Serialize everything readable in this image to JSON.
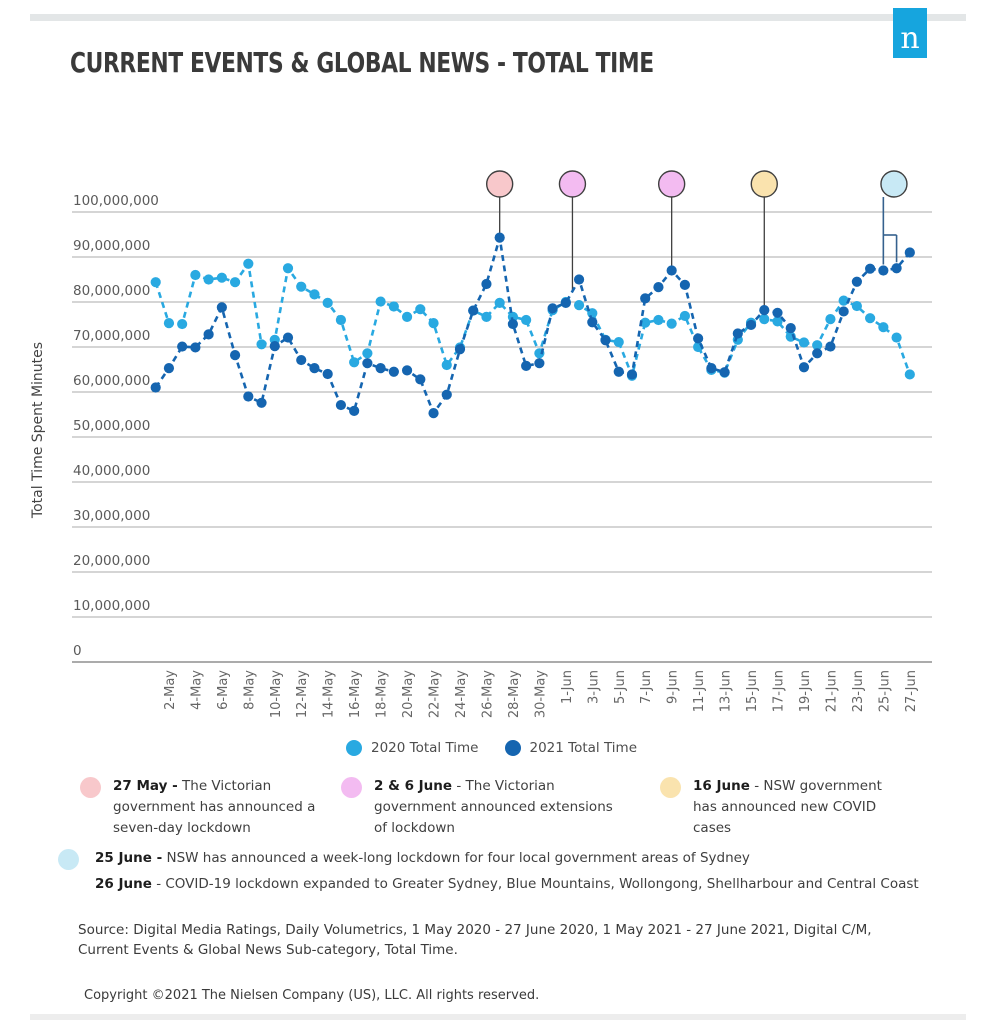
{
  "brand": {
    "logo_letter": "n",
    "logo_color": "#16a5de"
  },
  "header": {
    "title": "CURRENT EVENTS & GLOBAL NEWS -  TOTAL TIME"
  },
  "chart_data": {
    "type": "line",
    "title": "CURRENT EVENTS & GLOBAL NEWS - TOTAL TIME",
    "ylabel": "Total Time Spent Minutes",
    "ylim": [
      0,
      100000000
    ],
    "ytick_step": 10000000,
    "grid": "horizontal",
    "legend_position": "bottom-center",
    "x": [
      "1-May",
      "2-May",
      "3-May",
      "4-May",
      "5-May",
      "6-May",
      "7-May",
      "8-May",
      "9-May",
      "10-May",
      "11-May",
      "12-May",
      "13-May",
      "14-May",
      "15-May",
      "16-May",
      "17-May",
      "18-May",
      "19-May",
      "20-May",
      "21-May",
      "22-May",
      "23-May",
      "24-May",
      "25-May",
      "26-May",
      "27-May",
      "28-May",
      "29-May",
      "30-May",
      "31-May",
      "1-Jun",
      "2-Jun",
      "3-Jun",
      "4-Jun",
      "5-Jun",
      "6-Jun",
      "7-Jun",
      "8-Jun",
      "9-Jun",
      "10-Jun",
      "11-Jun",
      "12-Jun",
      "13-Jun",
      "14-Jun",
      "15-Jun",
      "16-Jun",
      "17-Jun",
      "18-Jun",
      "19-Jun",
      "20-Jun",
      "21-Jun",
      "22-Jun",
      "23-Jun",
      "24-Jun",
      "25-Jun",
      "26-Jun",
      "27-Jun"
    ],
    "x_ticks_shown": [
      "2-May",
      "4-May",
      "6-May",
      "8-May",
      "10-May",
      "12-May",
      "14-May",
      "16-May",
      "18-May",
      "20-May",
      "22-May",
      "24-May",
      "26-May",
      "28-May",
      "30-May",
      "1-Jun",
      "3-Jun",
      "5-Jun",
      "7-Jun",
      "9-Jun",
      "11-Jun",
      "13-Jun",
      "15-Jun",
      "17-Jun",
      "19-Jun",
      "21-Jun",
      "23-Jun",
      "25-Jun",
      "27-Jun"
    ],
    "series": [
      {
        "name": "2020 Total Time",
        "color": "#29a9e1",
        "values_millions": [
          84.4,
          75.3,
          75.1,
          86.0,
          85.0,
          85.4,
          84.4,
          88.5,
          70.6,
          71.6,
          87.5,
          83.4,
          81.7,
          79.8,
          76.0,
          66.6,
          68.6,
          80.1,
          79.0,
          76.7,
          78.4,
          75.3,
          66.0,
          69.9,
          78.1,
          76.7,
          79.8,
          76.7,
          76.0,
          68.6,
          78.2,
          80.0,
          79.3,
          77.5,
          71.6,
          71.1,
          63.6,
          75.4,
          76.0,
          75.2,
          76.9,
          70.0,
          64.9,
          64.3,
          71.6,
          75.4,
          76.2,
          75.7,
          72.3,
          71.0,
          70.4,
          76.2,
          80.3,
          79.1,
          76.4,
          74.4,
          72.1,
          63.9
        ]
      },
      {
        "name": "2021 Total Time",
        "color": "#1565b0",
        "values_millions": [
          61.0,
          65.3,
          70.1,
          69.9,
          72.8,
          78.8,
          68.2,
          59.0,
          57.6,
          70.2,
          72.1,
          67.1,
          65.3,
          64.0,
          57.1,
          55.8,
          66.4,
          65.3,
          64.5,
          64.8,
          62.8,
          55.3,
          59.4,
          69.5,
          78.1,
          84.0,
          94.3,
          75.1,
          65.8,
          66.4,
          78.6,
          79.8,
          85.0,
          75.5,
          71.5,
          64.5,
          63.9,
          80.8,
          83.3,
          87.0,
          83.8,
          71.9,
          65.3,
          64.4,
          73.0,
          74.9,
          78.2,
          77.6,
          74.2,
          65.5,
          68.6,
          70.1,
          77.9,
          84.5,
          87.4,
          87.0,
          87.5,
          91.0
        ]
      }
    ],
    "markers": [
      {
        "label": "27 May",
        "color": "#f8c8cb",
        "day": "27-May",
        "day_index": 26
      },
      {
        "label": "2 & 6 June",
        "color": "#f3bbf1",
        "day": "2-Jun",
        "day_index": 31.5
      },
      {
        "label": "2 & 6 June",
        "color": "#f3bbf1",
        "day": "9-Jun",
        "day_index": 39
      },
      {
        "label": "16 June",
        "color": "#fae3ae",
        "day": "16-Jun",
        "day_index": 46
      },
      {
        "label": "25 & 26 June",
        "color": "#c8e9f5",
        "day": "25-Jun",
        "day_index": 55.5,
        "bracket": [
          55,
          56
        ]
      }
    ]
  },
  "events": {
    "row1": [
      {
        "color": "#f8c8cb",
        "date": "27 May -",
        "text": "The Victorian government has announced a seven-day lockdown"
      },
      {
        "color": "#f3bbf1",
        "date": "2 & 6 June",
        "text": "- The Victorian government announced extensions  of lockdown"
      },
      {
        "color": "#fae3ae",
        "date": "16 June",
        "text": "- NSW government has announced new COVID cases"
      }
    ],
    "row2": {
      "color": "#c8e9f5",
      "lines": [
        {
          "date": "25 June -",
          "text": "NSW has announced a week-long lockdown for four local government areas of Sydney"
        },
        {
          "date": "26 June",
          "text": "- COVID-19 lockdown expanded to Greater Sydney, Blue Mountains, Wollongong, Shellharbour and Central Coast"
        }
      ]
    }
  },
  "footer": {
    "source": "Source: Digital Media Ratings, Daily Volumetrics, 1 May 2020 -  27 June 2020, 1 May 2021 -  27 June 2021, Digital C/M, Current Events & Global News Sub-category, Total Time.",
    "copyright": "Copyright ©2021 The Nielsen Company (US), LLC. All rights reserved."
  },
  "style_colors": {
    "gridline": "#ababab",
    "axis_text": "#5a5a5a",
    "stem": "#3f3f3f",
    "bracket": "#35618e"
  }
}
